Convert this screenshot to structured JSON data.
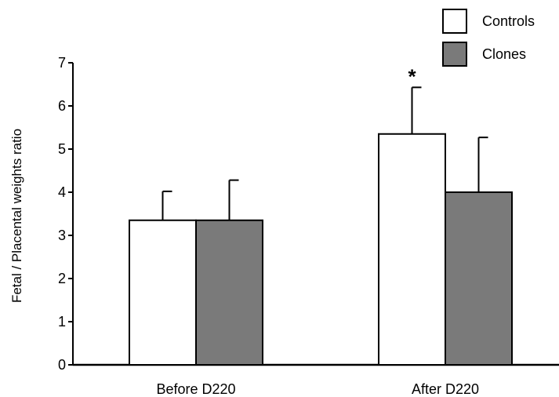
{
  "chart_data": {
    "type": "bar",
    "categories": [
      "Before D220",
      "After D220"
    ],
    "series": [
      {
        "name": "Controls",
        "color": "#ffffff",
        "values": [
          3.35,
          5.35
        ],
        "errors": [
          0.67,
          1.08
        ]
      },
      {
        "name": "Clones",
        "color": "#7a7a7a",
        "values": [
          3.35,
          4.0
        ],
        "errors": [
          0.93,
          1.27
        ]
      }
    ],
    "annotations": [
      {
        "category": "After D220",
        "series": "Controls",
        "text": "*"
      }
    ],
    "ylabel": "Fetal / Placental weights ratio",
    "xlabel": "",
    "title": "",
    "ylim": [
      0,
      7
    ],
    "yticks": [
      0,
      1,
      2,
      3,
      4,
      5,
      6,
      7
    ],
    "grid": false,
    "legend_position": "top-right"
  }
}
